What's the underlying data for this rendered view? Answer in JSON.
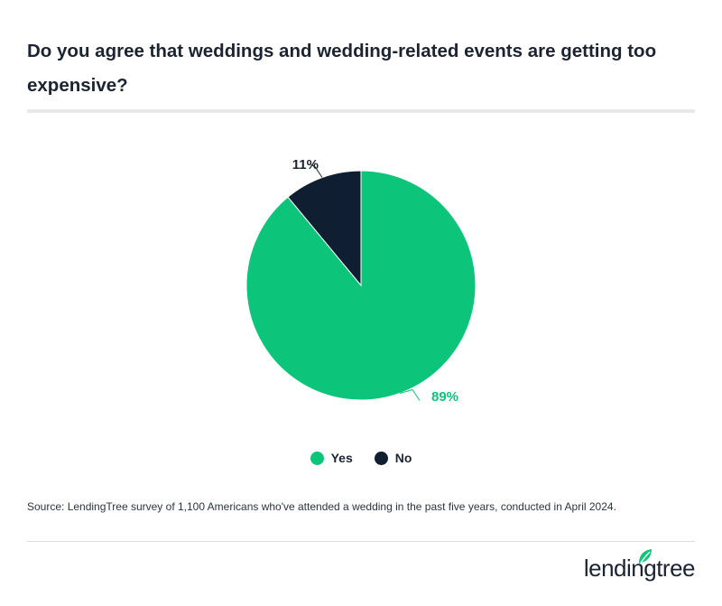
{
  "header": {
    "title": "Do you agree that weddings and wedding-related events are getting too expensive?"
  },
  "chart_data": {
    "type": "pie",
    "title": "Do you agree that weddings and wedding-related events are getting too expensive?",
    "categories": [
      "Yes",
      "No"
    ],
    "values": [
      89,
      11
    ],
    "labels": [
      "89%",
      "11%"
    ],
    "colors": [
      "#0cc47a",
      "#0f1e30"
    ],
    "label_colors": [
      "#0cc47a",
      "#1b2430"
    ],
    "legend_position": "bottom-center"
  },
  "legend": {
    "items": [
      {
        "label": "Yes",
        "color": "#0cc47a"
      },
      {
        "label": "No",
        "color": "#0f1e30"
      }
    ]
  },
  "footer": {
    "source": "Source: LendingTree survey of 1,100 Americans who've attended a wedding in the past five years, conducted in April 2024.",
    "logo_text": "lendingtree",
    "logo_icon": "leaf-icon",
    "brand_color": "#0cc47a"
  }
}
